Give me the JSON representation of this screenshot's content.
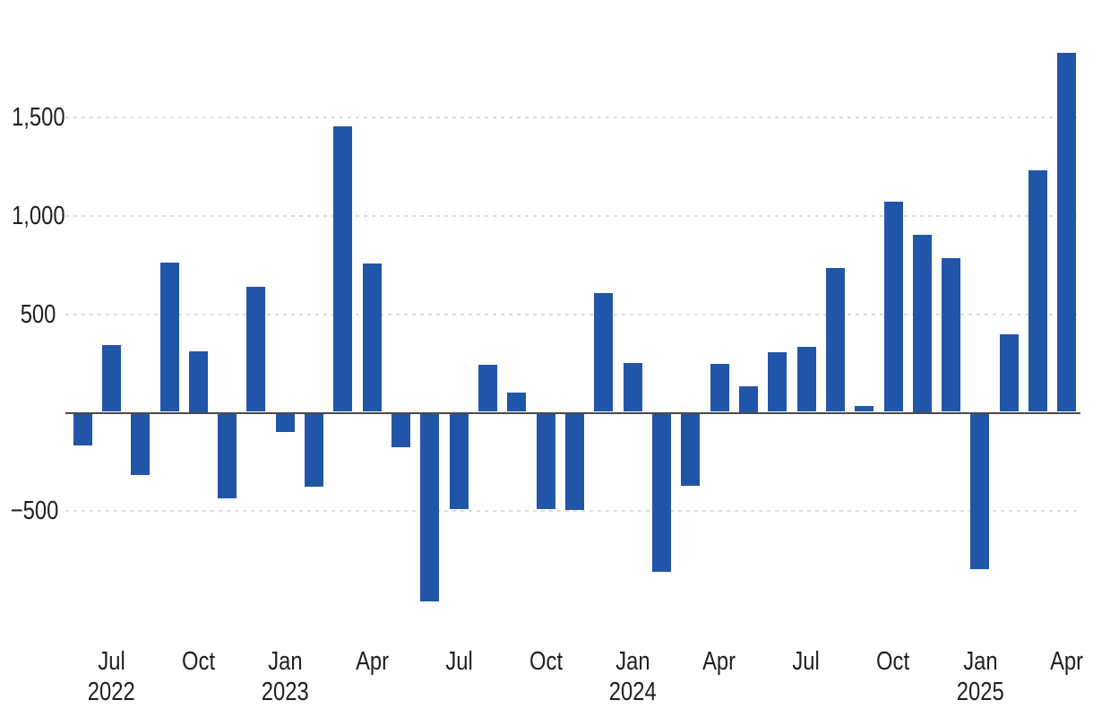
{
  "chart_data": {
    "type": "bar",
    "title": "",
    "legend": "none",
    "grid": "horizontal-dashed",
    "ylim": [
      -1000,
      1900
    ],
    "x": [
      "Jun 2022",
      "Jul 2022",
      "Aug 2022",
      "Sep 2022",
      "Oct 2022",
      "Nov 2022",
      "Dec 2022",
      "Jan 2023",
      "Feb 2023",
      "Mar 2023",
      "Apr 2023",
      "May 2023",
      "Jun 2023",
      "Jul 2023",
      "Aug 2023",
      "Sep 2023",
      "Oct 2023",
      "Nov 2023",
      "Dec 2023",
      "Jan 2024",
      "Feb 2024",
      "Mar 2024",
      "Apr 2024",
      "May 2024",
      "Jun 2024",
      "Jul 2024",
      "Aug 2024",
      "Sep 2024",
      "Oct 2024",
      "Nov 2024",
      "Dec 2024",
      "Jan 2025",
      "Feb 2025",
      "Mar 2025",
      "Apr 2025"
    ],
    "values": [
      -160,
      340,
      -310,
      760,
      310,
      -430,
      635,
      -95,
      -370,
      1450,
      755,
      -170,
      -955,
      -485,
      240,
      100,
      -485,
      -490,
      605,
      250,
      -805,
      -365,
      245,
      130,
      305,
      330,
      730,
      30,
      1070,
      900,
      780,
      -790,
      395,
      1230,
      1825
    ],
    "yticks": [
      {
        "value": 1500,
        "label": "1,500"
      },
      {
        "value": 1000,
        "label": "1,000"
      },
      {
        "value": 500,
        "label": "500"
      },
      {
        "value": -500,
        "label": "−500"
      }
    ],
    "xticks": [
      {
        "index": 1,
        "month": "Jul",
        "year": "2022"
      },
      {
        "index": 4,
        "month": "Oct",
        "year": ""
      },
      {
        "index": 7,
        "month": "Jan",
        "year": "2023"
      },
      {
        "index": 10,
        "month": "Apr",
        "year": ""
      },
      {
        "index": 13,
        "month": "Jul",
        "year": ""
      },
      {
        "index": 16,
        "month": "Oct",
        "year": ""
      },
      {
        "index": 19,
        "month": "Jan",
        "year": "2024"
      },
      {
        "index": 22,
        "month": "Apr",
        "year": ""
      },
      {
        "index": 25,
        "month": "Jul",
        "year": ""
      },
      {
        "index": 28,
        "month": "Oct",
        "year": ""
      },
      {
        "index": 31,
        "month": "Jan",
        "year": "2025"
      },
      {
        "index": 34,
        "month": "Apr",
        "year": ""
      }
    ],
    "colors": {
      "bar": "#2155A8",
      "axis": "#4A4A4A",
      "gridline": "#DBDBDB",
      "label": "#1F1F1F"
    }
  }
}
